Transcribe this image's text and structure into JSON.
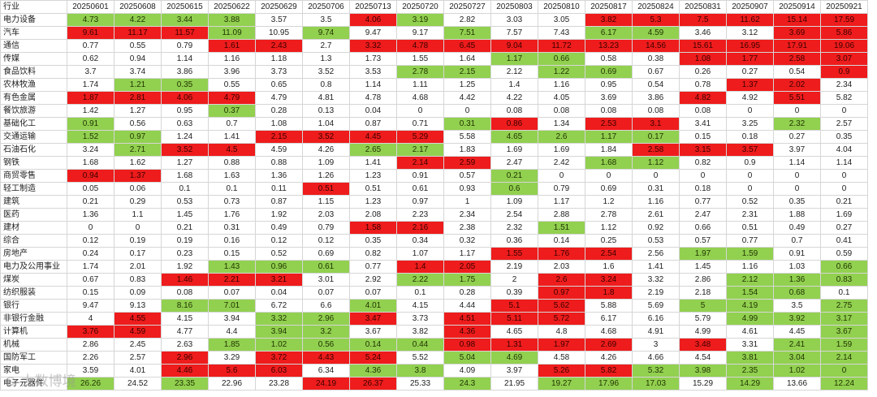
{
  "colors": {
    "red": "#ee1c1c",
    "green": "#92d050",
    "white": "#ffffff"
  },
  "header": [
    "行业",
    "20250601",
    "20250608",
    "20250615",
    "20250622",
    "20250629",
    "20250706",
    "20250713",
    "20250720",
    "20250727",
    "20250803",
    "20250810",
    "20250817",
    "20250824",
    "20250831",
    "20250907",
    "20250914",
    "20250921"
  ],
  "rows": [
    {
      "name": "电力设备",
      "values": [
        "4.73",
        "4.22",
        "3.44",
        "3.88",
        "3.57",
        "3.5",
        "4.06",
        "3.19",
        "2.82",
        "3.03",
        "3.05",
        "3.82",
        "5.3",
        "7.5",
        "11.62",
        "15.14",
        "17.59"
      ],
      "colors": "ggggwwrgwwwrrrrrr"
    },
    {
      "name": "汽车",
      "values": [
        "9.61",
        "11.17",
        "11.57",
        "11.09",
        "10.95",
        "9.74",
        "9.47",
        "9.17",
        "7.51",
        "7.57",
        "7.43",
        "6.17",
        "4.59",
        "3.46",
        "3.12",
        "3.69",
        "5.86"
      ],
      "colors": "rrrgwgwwgwwggwwrr"
    },
    {
      "name": "通信",
      "values": [
        "0.77",
        "0.55",
        "0.79",
        "1.61",
        "2.43",
        "2.7",
        "3.32",
        "4.78",
        "6.45",
        "9.04",
        "11.72",
        "13.23",
        "14.56",
        "15.61",
        "16.95",
        "17.91",
        "19.06"
      ],
      "colors": "wwwrrwrrrrrrrrrrr"
    },
    {
      "name": "传媒",
      "values": [
        "0.62",
        "0.94",
        "1.14",
        "1.16",
        "1.18",
        "1.3",
        "1.73",
        "1.55",
        "1.64",
        "1.17",
        "0.66",
        "0.58",
        "0.38",
        "1.08",
        "1.77",
        "2.58",
        "3.07"
      ],
      "colors": "wwwwwwwwwggwwrrrr"
    },
    {
      "name": "食品饮料",
      "values": [
        "3.7",
        "3.74",
        "3.86",
        "3.96",
        "3.73",
        "3.52",
        "3.53",
        "2.78",
        "2.15",
        "2.12",
        "1.22",
        "0.69",
        "0.67",
        "0.26",
        "0.27",
        "0.54",
        "0.9"
      ],
      "colors": "wwwwwwwggwggwwwwr"
    },
    {
      "name": "农林牧渔",
      "values": [
        "1.74",
        "1.21",
        "0.35",
        "0.55",
        "0.65",
        "0.8",
        "1.14",
        "1.11",
        "1.25",
        "1.4",
        "1.16",
        "0.95",
        "0.54",
        "0.78",
        "1.37",
        "2.02",
        "2.34"
      ],
      "colors": "wggwwwwwwwwwwwrrw"
    },
    {
      "name": "有色金属",
      "values": [
        "1.87",
        "2.81",
        "4.06",
        "4.79",
        "4.79",
        "4.81",
        "4.78",
        "4.68",
        "4.42",
        "4.22",
        "4.05",
        "3.69",
        "3.86",
        "4.82",
        "4.92",
        "5.51",
        "5.82"
      ],
      "colors": "rrrrwwwwwwwwwrwrw"
    },
    {
      "name": "餐饮旅游",
      "values": [
        "1.42",
        "1.27",
        "0.95",
        "0.37",
        "0.28",
        "0.13",
        "0.04",
        "0",
        "0",
        "0.08",
        "0.08",
        "0.08",
        "0.08",
        "0.08",
        "0",
        "0",
        "0"
      ],
      "colors": "wwwgwwwwwwwwwwwww"
    },
    {
      "name": "基础化工",
      "values": [
        "0.91",
        "0.56",
        "0.63",
        "0.7",
        "1.08",
        "1.04",
        "0.87",
        "0.71",
        "0.31",
        "0.86",
        "1.34",
        "2.53",
        "3.1",
        "3.41",
        "3.25",
        "2.32",
        "2.57"
      ],
      "colors": "gwwwwwwwgrwrrwwgw"
    },
    {
      "name": "交通运输",
      "values": [
        "1.52",
        "0.97",
        "1.24",
        "1.41",
        "2.15",
        "3.52",
        "4.45",
        "5.29",
        "5.58",
        "4.65",
        "2.6",
        "1.17",
        "0.17",
        "0.15",
        "0.18",
        "0.27",
        "0.35"
      ],
      "colors": "ggwwrrrrwggggwwww"
    },
    {
      "name": "石油石化",
      "values": [
        "3.24",
        "2.71",
        "3.52",
        "4.5",
        "4.59",
        "4.26",
        "2.65",
        "2.17",
        "1.83",
        "1.69",
        "1.69",
        "1.84",
        "2.58",
        "3.15",
        "3.57",
        "3.97",
        "4.04"
      ],
      "colors": "wgrrwwggwwwwrrrww"
    },
    {
      "name": "钢铁",
      "values": [
        "1.68",
        "1.62",
        "1.27",
        "0.88",
        "0.88",
        "1.09",
        "1.41",
        "2.14",
        "2.59",
        "2.47",
        "2.42",
        "1.68",
        "1.12",
        "0.82",
        "0.9",
        "1.14",
        "1.14"
      ],
      "colors": "wwwwwwwrrwwggwwww"
    },
    {
      "name": "商贸零售",
      "values": [
        "0.94",
        "1.37",
        "1.68",
        "1.63",
        "1.36",
        "1.26",
        "1.23",
        "0.91",
        "0.57",
        "0.21",
        "0",
        "0",
        "0",
        "0",
        "0",
        "0",
        "0"
      ],
      "colors": "rrwwwwwwwgwwwwwww"
    },
    {
      "name": "轻工制造",
      "values": [
        "0.05",
        "0.06",
        "0.1",
        "0.1",
        "0.11",
        "0.51",
        "0.51",
        "0.61",
        "0.93",
        "0.6",
        "0.79",
        "0.69",
        "0.31",
        "0.18",
        "0",
        "0",
        "0"
      ],
      "colors": "wwwwwrwwwgwwwwwww"
    },
    {
      "name": "建筑",
      "values": [
        "0.21",
        "0.29",
        "0.53",
        "0.73",
        "0.87",
        "1.15",
        "1.23",
        "0.97",
        "1",
        "1.09",
        "1.17",
        "1.2",
        "1.16",
        "0.77",
        "0.52",
        "0.35",
        "0.21"
      ],
      "colors": "wwwwwwwwwwwwwwwww"
    },
    {
      "name": "医药",
      "values": [
        "1.36",
        "1.1",
        "1.45",
        "1.76",
        "1.92",
        "2.03",
        "2.08",
        "2.23",
        "2.34",
        "2.54",
        "2.88",
        "2.78",
        "2.61",
        "2.47",
        "2.31",
        "1.88",
        "1.69"
      ],
      "colors": "wwwwwwwwwwwwwwwww"
    },
    {
      "name": "建材",
      "values": [
        "0",
        "0",
        "0.21",
        "0.31",
        "0.49",
        "0.79",
        "1.58",
        "2.16",
        "2.38",
        "2.32",
        "1.51",
        "1.12",
        "0.92",
        "0.66",
        "0.51",
        "0.49",
        "0.27"
      ],
      "colors": "wwwwwwrrwwgwwwwww"
    },
    {
      "name": "综合",
      "values": [
        "0.12",
        "0.19",
        "0.19",
        "0.16",
        "0.12",
        "0.12",
        "0.35",
        "0.34",
        "0.32",
        "0.36",
        "0.14",
        "0.25",
        "0.53",
        "0.57",
        "0.77",
        "0.7",
        "0.41"
      ],
      "colors": "wwwwwwwwwwwwwwwww"
    },
    {
      "name": "房地产",
      "values": [
        "0.24",
        "0.17",
        "0.23",
        "0.15",
        "0.52",
        "0.69",
        "0.82",
        "1.07",
        "1.17",
        "1.55",
        "1.76",
        "2.54",
        "2.56",
        "1.97",
        "1.59",
        "0.91",
        "0.59"
      ],
      "colors": "wwwwwwwwwrrrwggww"
    },
    {
      "name": "电力及公用事业",
      "values": [
        "1.74",
        "2.01",
        "1.92",
        "1.43",
        "0.96",
        "0.61",
        "0.77",
        "1.4",
        "2.05",
        "2.19",
        "2.03",
        "1.6",
        "1.41",
        "1.45",
        "1.16",
        "1.03",
        "0.66"
      ],
      "colors": "wwwgggwrrwwwwwwwg"
    },
    {
      "name": "煤炭",
      "values": [
        "0.67",
        "0.83",
        "1.46",
        "2.21",
        "3.21",
        "3.01",
        "2.92",
        "2.22",
        "1.75",
        "2",
        "2.6",
        "3.24",
        "3.32",
        "2.86",
        "2.12",
        "1.36",
        "0.83"
      ],
      "colors": "wwrrrwwggwrrwwggg"
    },
    {
      "name": "纺织服装",
      "values": [
        "0.15",
        "0.09",
        "0.08",
        "0.07",
        "0.04",
        "0.07",
        "0.07",
        "0.1",
        "0.28",
        "0.39",
        "0.97",
        "1.8",
        "2.19",
        "2.18",
        "1.54",
        "0.68",
        "0.1"
      ],
      "colors": "wwwwwwwwwwrrwwggw"
    },
    {
      "name": "银行",
      "values": [
        "9.47",
        "9.13",
        "8.16",
        "7.01",
        "6.72",
        "6.6",
        "4.01",
        "4.15",
        "4.44",
        "5.1",
        "5.62",
        "5.88",
        "5.69",
        "5",
        "4.19",
        "3.5",
        "2.75"
      ],
      "colors": "wwggwwgwwrrwwggwg"
    },
    {
      "name": "非银行金融",
      "values": [
        "4",
        "4.55",
        "4.15",
        "3.94",
        "3.32",
        "2.96",
        "3.47",
        "3.73",
        "4.51",
        "5.11",
        "5.72",
        "6.17",
        "6.16",
        "5.79",
        "4.99",
        "3.92",
        "3.17"
      ],
      "colors": "wrwwggrwrrrwwwggg"
    },
    {
      "name": "计算机",
      "values": [
        "3.76",
        "4.59",
        "4.77",
        "4.4",
        "3.94",
        "3.2",
        "3.67",
        "3.82",
        "4.36",
        "4.65",
        "4.8",
        "4.68",
        "4.91",
        "4.99",
        "4.61",
        "4.45",
        "3.67"
      ],
      "colors": "rrwwggwwrwwwwwwwg"
    },
    {
      "name": "机械",
      "values": [
        "2.86",
        "2.45",
        "2.63",
        "1.85",
        "1.02",
        "0.56",
        "0.14",
        "0.44",
        "0.98",
        "1.31",
        "1.97",
        "2.69",
        "3",
        "3.48",
        "3.31",
        "2.41",
        "1.59"
      ],
      "colors": "wwwgggggrrrrwrwgg"
    },
    {
      "name": "国防军工",
      "values": [
        "2.26",
        "2.57",
        "2.96",
        "3.29",
        "3.72",
        "4.43",
        "5.24",
        "5.52",
        "5.04",
        "4.69",
        "4.58",
        "4.26",
        "4.66",
        "4.54",
        "3.81",
        "3.04",
        "2.14"
      ],
      "colors": "wwrwrrrwggwwwwggg"
    },
    {
      "name": "家电",
      "values": [
        "3.59",
        "4.01",
        "4.46",
        "5.6",
        "6.03",
        "6.34",
        "4.36",
        "3.8",
        "4.09",
        "3.97",
        "5.26",
        "5.82",
        "5.32",
        "3.98",
        "2.35",
        "1.02",
        "0"
      ],
      "colors": "wwrrrwggwwrrggggg"
    },
    {
      "name": "电子元器件",
      "values": [
        "26.26",
        "24.52",
        "23.35",
        "22.96",
        "23.28",
        "24.19",
        "26.37",
        "25.33",
        "24.3",
        "21.95",
        "19.27",
        "17.96",
        "17.03",
        "15.29",
        "14.29",
        "13.66",
        "12.24"
      ],
      "colors": "gwgwwrrwgwgggwgwg"
    }
  ],
  "watermark": "⊙ 大数博境"
}
